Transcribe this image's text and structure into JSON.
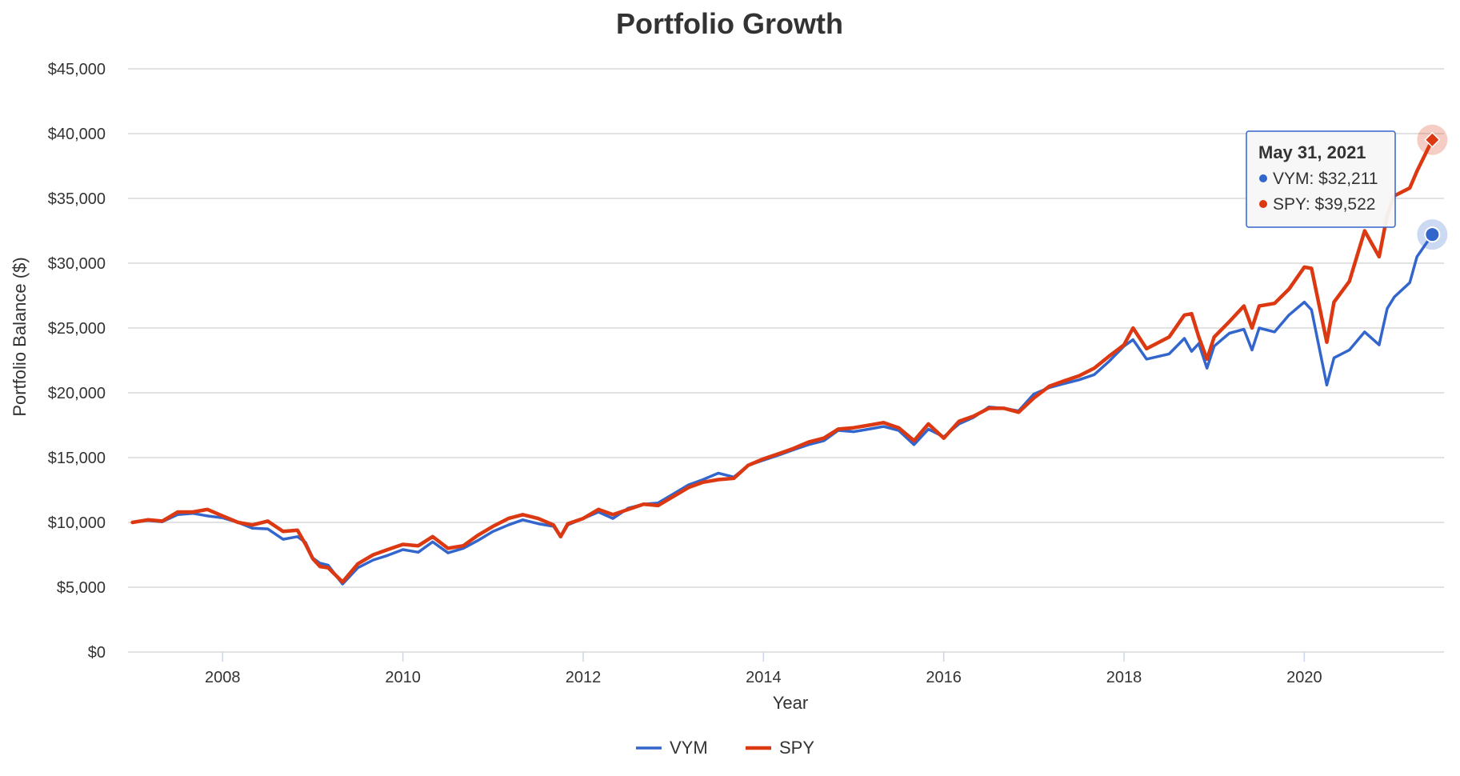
{
  "chart_data": {
    "type": "line",
    "title": "Portfolio Growth",
    "xlabel": "Year",
    "ylabel": "Portfolio Balance ($)",
    "xlim": [
      2006.95,
      2021.55
    ],
    "ylim": [
      0,
      45000
    ],
    "yticks": [
      0,
      5000,
      10000,
      15000,
      20000,
      25000,
      30000,
      35000,
      40000,
      45000
    ],
    "ytick_labels": [
      "$0",
      "$5,000",
      "$10,000",
      "$15,000",
      "$20,000",
      "$25,000",
      "$30,000",
      "$35,000",
      "$40,000",
      "$45,000"
    ],
    "xticks": [
      2008,
      2010,
      2012,
      2014,
      2016,
      2018,
      2020
    ],
    "xtick_labels": [
      "2008",
      "2010",
      "2012",
      "2014",
      "2016",
      "2018",
      "2020"
    ],
    "grid": true,
    "legend_position": "bottom-center",
    "series": [
      {
        "name": "VYM",
        "color": "#3366cc",
        "points": [
          [
            2007.0,
            10000
          ],
          [
            2007.17,
            10150
          ],
          [
            2007.33,
            10050
          ],
          [
            2007.5,
            10600
          ],
          [
            2007.67,
            10700
          ],
          [
            2007.83,
            10500
          ],
          [
            2008.0,
            10350
          ],
          [
            2008.17,
            10000
          ],
          [
            2008.33,
            9550
          ],
          [
            2008.5,
            9500
          ],
          [
            2008.67,
            8700
          ],
          [
            2008.83,
            8900
          ],
          [
            2008.92,
            8450
          ],
          [
            2009.0,
            7250
          ],
          [
            2009.08,
            6850
          ],
          [
            2009.17,
            6700
          ],
          [
            2009.33,
            5250
          ],
          [
            2009.5,
            6500
          ],
          [
            2009.67,
            7100
          ],
          [
            2009.83,
            7450
          ],
          [
            2010.0,
            7900
          ],
          [
            2010.17,
            7700
          ],
          [
            2010.33,
            8500
          ],
          [
            2010.5,
            7650
          ],
          [
            2010.67,
            8000
          ],
          [
            2010.83,
            8600
          ],
          [
            2011.0,
            9300
          ],
          [
            2011.17,
            9800
          ],
          [
            2011.33,
            10200
          ],
          [
            2011.5,
            9900
          ],
          [
            2011.67,
            9700
          ],
          [
            2011.75,
            8900
          ],
          [
            2011.83,
            9800
          ],
          [
            2012.0,
            10300
          ],
          [
            2012.17,
            10800
          ],
          [
            2012.33,
            10300
          ],
          [
            2012.5,
            11100
          ],
          [
            2012.67,
            11400
          ],
          [
            2012.83,
            11500
          ],
          [
            2013.0,
            12200
          ],
          [
            2013.17,
            12900
          ],
          [
            2013.33,
            13300
          ],
          [
            2013.5,
            13800
          ],
          [
            2013.67,
            13500
          ],
          [
            2013.83,
            14400
          ],
          [
            2014.0,
            14800
          ],
          [
            2014.17,
            15200
          ],
          [
            2014.33,
            15600
          ],
          [
            2014.5,
            16000
          ],
          [
            2014.67,
            16300
          ],
          [
            2014.83,
            17100
          ],
          [
            2015.0,
            17000
          ],
          [
            2015.17,
            17200
          ],
          [
            2015.33,
            17400
          ],
          [
            2015.5,
            17100
          ],
          [
            2015.67,
            16000
          ],
          [
            2015.83,
            17200
          ],
          [
            2016.0,
            16600
          ],
          [
            2016.17,
            17600
          ],
          [
            2016.33,
            18100
          ],
          [
            2016.5,
            18900
          ],
          [
            2016.67,
            18800
          ],
          [
            2016.83,
            18600
          ],
          [
            2017.0,
            19900
          ],
          [
            2017.17,
            20400
          ],
          [
            2017.33,
            20700
          ],
          [
            2017.5,
            21000
          ],
          [
            2017.67,
            21400
          ],
          [
            2017.83,
            22400
          ],
          [
            2018.0,
            23600
          ],
          [
            2018.1,
            24100
          ],
          [
            2018.25,
            22600
          ],
          [
            2018.5,
            23000
          ],
          [
            2018.67,
            24200
          ],
          [
            2018.75,
            23200
          ],
          [
            2018.83,
            23800
          ],
          [
            2018.92,
            21900
          ],
          [
            2019.0,
            23600
          ],
          [
            2019.17,
            24600
          ],
          [
            2019.33,
            24900
          ],
          [
            2019.42,
            23300
          ],
          [
            2019.5,
            25000
          ],
          [
            2019.67,
            24700
          ],
          [
            2019.83,
            26000
          ],
          [
            2020.0,
            27000
          ],
          [
            2020.08,
            26400
          ],
          [
            2020.25,
            20600
          ],
          [
            2020.33,
            22700
          ],
          [
            2020.5,
            23300
          ],
          [
            2020.67,
            24700
          ],
          [
            2020.83,
            23700
          ],
          [
            2020.92,
            26500
          ],
          [
            2021.0,
            27400
          ],
          [
            2021.17,
            28500
          ],
          [
            2021.25,
            30500
          ],
          [
            2021.42,
            32211
          ]
        ]
      },
      {
        "name": "SPY",
        "color": "#dc3912",
        "points": [
          [
            2007.0,
            10000
          ],
          [
            2007.17,
            10200
          ],
          [
            2007.33,
            10100
          ],
          [
            2007.5,
            10800
          ],
          [
            2007.67,
            10800
          ],
          [
            2007.83,
            11000
          ],
          [
            2008.0,
            10500
          ],
          [
            2008.17,
            10000
          ],
          [
            2008.33,
            9800
          ],
          [
            2008.5,
            10100
          ],
          [
            2008.67,
            9300
          ],
          [
            2008.83,
            9400
          ],
          [
            2008.92,
            8300
          ],
          [
            2009.0,
            7200
          ],
          [
            2009.08,
            6600
          ],
          [
            2009.17,
            6500
          ],
          [
            2009.33,
            5400
          ],
          [
            2009.5,
            6800
          ],
          [
            2009.67,
            7500
          ],
          [
            2009.83,
            7900
          ],
          [
            2010.0,
            8300
          ],
          [
            2010.17,
            8200
          ],
          [
            2010.33,
            8900
          ],
          [
            2010.5,
            8000
          ],
          [
            2010.67,
            8200
          ],
          [
            2010.83,
            9000
          ],
          [
            2011.0,
            9700
          ],
          [
            2011.17,
            10300
          ],
          [
            2011.33,
            10600
          ],
          [
            2011.5,
            10300
          ],
          [
            2011.67,
            9800
          ],
          [
            2011.75,
            8900
          ],
          [
            2011.83,
            9900
          ],
          [
            2012.0,
            10300
          ],
          [
            2012.17,
            11000
          ],
          [
            2012.33,
            10600
          ],
          [
            2012.5,
            11000
          ],
          [
            2012.67,
            11400
          ],
          [
            2012.83,
            11300
          ],
          [
            2013.0,
            12000
          ],
          [
            2013.17,
            12700
          ],
          [
            2013.33,
            13100
          ],
          [
            2013.5,
            13300
          ],
          [
            2013.67,
            13400
          ],
          [
            2013.83,
            14400
          ],
          [
            2014.0,
            14900
          ],
          [
            2014.17,
            15300
          ],
          [
            2014.33,
            15700
          ],
          [
            2014.5,
            16200
          ],
          [
            2014.67,
            16500
          ],
          [
            2014.83,
            17200
          ],
          [
            2015.0,
            17300
          ],
          [
            2015.17,
            17500
          ],
          [
            2015.33,
            17700
          ],
          [
            2015.5,
            17300
          ],
          [
            2015.67,
            16300
          ],
          [
            2015.83,
            17600
          ],
          [
            2016.0,
            16500
          ],
          [
            2016.17,
            17800
          ],
          [
            2016.33,
            18200
          ],
          [
            2016.5,
            18800
          ],
          [
            2016.67,
            18800
          ],
          [
            2016.83,
            18500
          ],
          [
            2017.0,
            19600
          ],
          [
            2017.17,
            20500
          ],
          [
            2017.33,
            20900
          ],
          [
            2017.5,
            21300
          ],
          [
            2017.67,
            21900
          ],
          [
            2017.83,
            22800
          ],
          [
            2018.0,
            23700
          ],
          [
            2018.1,
            25000
          ],
          [
            2018.25,
            23400
          ],
          [
            2018.5,
            24300
          ],
          [
            2018.67,
            26000
          ],
          [
            2018.75,
            26100
          ],
          [
            2018.83,
            24300
          ],
          [
            2018.92,
            22600
          ],
          [
            2019.0,
            24300
          ],
          [
            2019.17,
            25500
          ],
          [
            2019.33,
            26700
          ],
          [
            2019.42,
            25000
          ],
          [
            2019.5,
            26700
          ],
          [
            2019.67,
            26900
          ],
          [
            2019.83,
            28000
          ],
          [
            2020.0,
            29700
          ],
          [
            2020.08,
            29600
          ],
          [
            2020.25,
            23900
          ],
          [
            2020.33,
            27000
          ],
          [
            2020.5,
            28600
          ],
          [
            2020.67,
            32500
          ],
          [
            2020.83,
            30500
          ],
          [
            2020.92,
            33700
          ],
          [
            2021.0,
            35200
          ],
          [
            2021.17,
            35800
          ],
          [
            2021.25,
            37100
          ],
          [
            2021.42,
            39522
          ]
        ]
      }
    ],
    "tooltip": {
      "date": "May 31, 2021",
      "rows": [
        "VYM: $32,211",
        "SPY: $39,522"
      ]
    }
  }
}
